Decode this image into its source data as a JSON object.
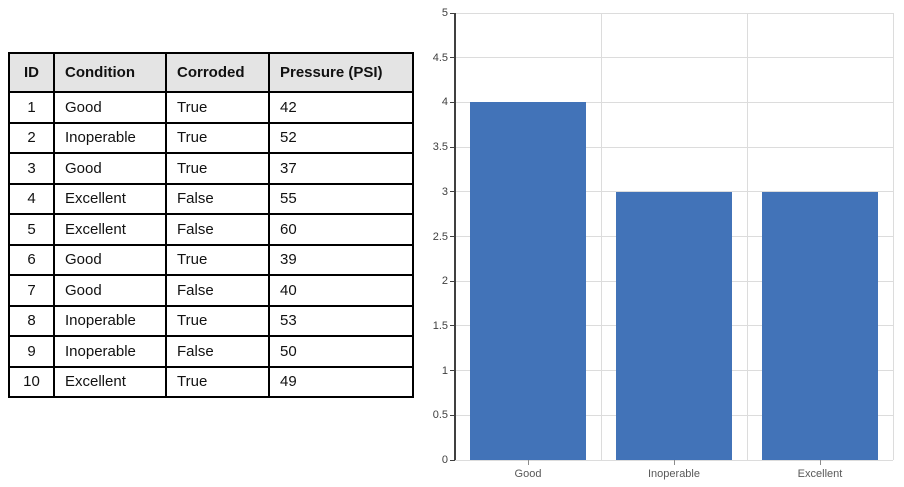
{
  "table": {
    "headers": [
      "ID",
      "Condition",
      "Corroded",
      "Pressure (PSI)"
    ],
    "rows": [
      [
        "1",
        "Good",
        "True",
        "42"
      ],
      [
        "2",
        "Inoperable",
        "True",
        "52"
      ],
      [
        "3",
        "Good",
        "True",
        "37"
      ],
      [
        "4",
        "Excellent",
        "False",
        "55"
      ],
      [
        "5",
        "Excellent",
        "False",
        "60"
      ],
      [
        "6",
        "Good",
        "True",
        "39"
      ],
      [
        "7",
        "Good",
        "False",
        "40"
      ],
      [
        "8",
        "Inoperable",
        "True",
        "53"
      ],
      [
        "9",
        "Inoperable",
        "False",
        "50"
      ],
      [
        "10",
        "Excellent",
        "True",
        "49"
      ]
    ]
  },
  "chart_data": {
    "type": "bar",
    "categories": [
      "Good",
      "Inoperable",
      "Excellent"
    ],
    "values": [
      4,
      3,
      3
    ],
    "title": "",
    "xlabel": "",
    "ylabel": "",
    "ylim": [
      0,
      5
    ],
    "ytick_step": 0.5,
    "ytick_labels": [
      "5",
      "4.5",
      "4",
      "3.5",
      "3",
      "2.5",
      "2",
      "1.5",
      "1",
      "0.5",
      "0"
    ],
    "grid": true,
    "legend_position": "none",
    "colors": {
      "bar": "#4273b8",
      "gridline": "#dcdcdc",
      "axis": "#404040",
      "tick_label": "#404040",
      "category_label": "#595959",
      "x_tick": "#8c8c8c"
    }
  }
}
